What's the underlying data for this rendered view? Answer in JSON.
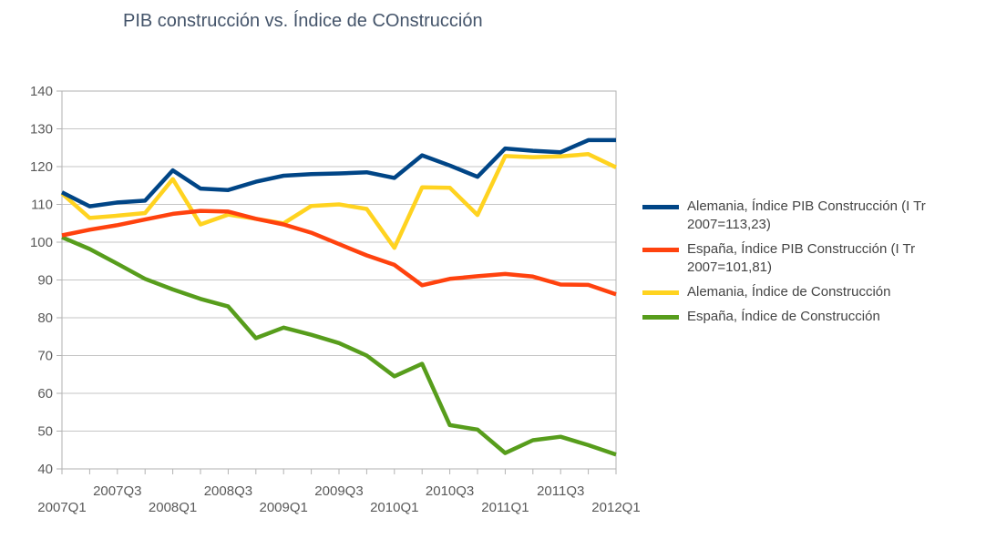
{
  "chart_data": {
    "type": "line",
    "title": "PIB construcción vs. Índice de COnstrucción",
    "x": [
      "2007Q1",
      "2007Q2",
      "2007Q3",
      "2007Q4",
      "2008Q1",
      "2008Q2",
      "2008Q3",
      "2008Q4",
      "2009Q1",
      "2009Q2",
      "2009Q3",
      "2009Q4",
      "2010Q1",
      "2010Q2",
      "2010Q3",
      "2010Q4",
      "2011Q1",
      "2011Q2",
      "2011Q3",
      "2011Q4",
      "2012Q1"
    ],
    "x_axis_labels_shown": [
      "2007Q1",
      "2007Q3",
      "2008Q1",
      "2008Q3",
      "2009Q1",
      "2009Q3",
      "2010Q1",
      "2010Q3",
      "2011Q1",
      "2011Q3",
      "2012Q1"
    ],
    "ylim": [
      40,
      140
    ],
    "y_tick_step": 10,
    "y_tick_labels": [
      "40",
      "50",
      "60",
      "70",
      "80",
      "90",
      "100",
      "110",
      "120",
      "130",
      "140"
    ],
    "grid": true,
    "legend_position": "right",
    "series": [
      {
        "name": "Alemania, Índice PIB Construcción (I Tr 2007=113,23)",
        "color": "#004586",
        "values": [
          113.2,
          109.5,
          110.5,
          111.0,
          119.0,
          114.2,
          113.8,
          116.0,
          117.6,
          118.0,
          118.2,
          118.5,
          117.0,
          123.0,
          120.3,
          117.3,
          124.8,
          124.2,
          123.8,
          127.0,
          127.0
        ]
      },
      {
        "name": "España, Índice PIB Construcción (I Tr 2007=101,81)",
        "color": "#FF420E",
        "values": [
          101.8,
          103.3,
          104.5,
          106.0,
          107.5,
          108.3,
          108.1,
          106.2,
          104.7,
          102.5,
          99.5,
          96.5,
          94.0,
          88.6,
          90.3,
          91.0,
          91.6,
          90.9,
          88.8,
          88.7,
          86.2
        ]
      },
      {
        "name": "Alemania, Índice de Construcción",
        "color": "#FFD320",
        "values": [
          112.9,
          106.4,
          107.0,
          107.7,
          116.7,
          104.7,
          107.3,
          106.2,
          105.0,
          109.6,
          110.0,
          108.8,
          98.5,
          114.5,
          114.4,
          107.2,
          122.8,
          122.5,
          122.7,
          123.3,
          119.8
        ]
      },
      {
        "name": "España, Índice de Construcción",
        "color": "#579D1C",
        "values": [
          101.3,
          98.2,
          94.3,
          90.3,
          87.5,
          85.0,
          83.0,
          74.6,
          77.4,
          75.5,
          73.3,
          70.0,
          64.5,
          67.8,
          51.6,
          50.4,
          44.2,
          47.6,
          48.5,
          46.3,
          43.8
        ]
      }
    ]
  },
  "colors": {
    "title_text": "#44546A",
    "axis_text": "#595959",
    "gridline": "#c6c6c6",
    "axis_line": "#b2b2b2",
    "background": "#ffffff"
  }
}
